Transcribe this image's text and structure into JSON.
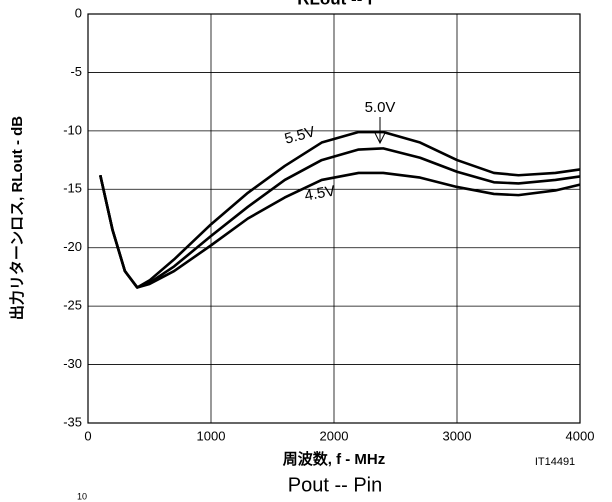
{
  "chart_data": {
    "type": "line",
    "title": "RLout -- f",
    "x_label": "周波数, f - MHz",
    "y_label": "出力リターンロス, RLout - dB",
    "figure_id": "IT14491",
    "next_chart_title": "Pout -- Pin",
    "next_chart_tick": "10",
    "x": [
      100,
      200,
      300,
      400,
      500,
      700,
      1000,
      1300,
      1600,
      1900,
      2200,
      2400,
      2700,
      3000,
      3300,
      3500,
      3800,
      4000
    ],
    "series": [
      {
        "name": "5.5V",
        "color": "#000000",
        "values": [
          -13.8,
          -18.5,
          -22,
          -23.4,
          -22.8,
          -21,
          -18,
          -15.3,
          -13,
          -11,
          -10.1,
          -10.1,
          -11,
          -12.5,
          -13.6,
          -13.8,
          -13.6,
          -13.3
        ]
      },
      {
        "name": "5.0V",
        "color": "#000000",
        "values": [
          -13.8,
          -18.5,
          -22,
          -23.4,
          -23,
          -21.6,
          -19,
          -16.5,
          -14.2,
          -12.5,
          -11.6,
          -11.5,
          -12.3,
          -13.5,
          -14.4,
          -14.5,
          -14.2,
          -13.9
        ]
      },
      {
        "name": "4.5V",
        "color": "#000000",
        "values": [
          -13.8,
          -18.5,
          -22,
          -23.4,
          -23.1,
          -22,
          -19.8,
          -17.5,
          -15.7,
          -14.2,
          -13.6,
          -13.6,
          -14,
          -14.8,
          -15.4,
          -15.5,
          -15.1,
          -14.6
        ]
      }
    ],
    "xlim": [
      0,
      4000
    ],
    "xticks": [
      0,
      1000,
      2000,
      3000,
      4000
    ],
    "ylim": [
      -35,
      0
    ],
    "yticks": [
      0,
      -5,
      -10,
      -15,
      -20,
      -25,
      -30,
      -35
    ],
    "grid": true
  }
}
